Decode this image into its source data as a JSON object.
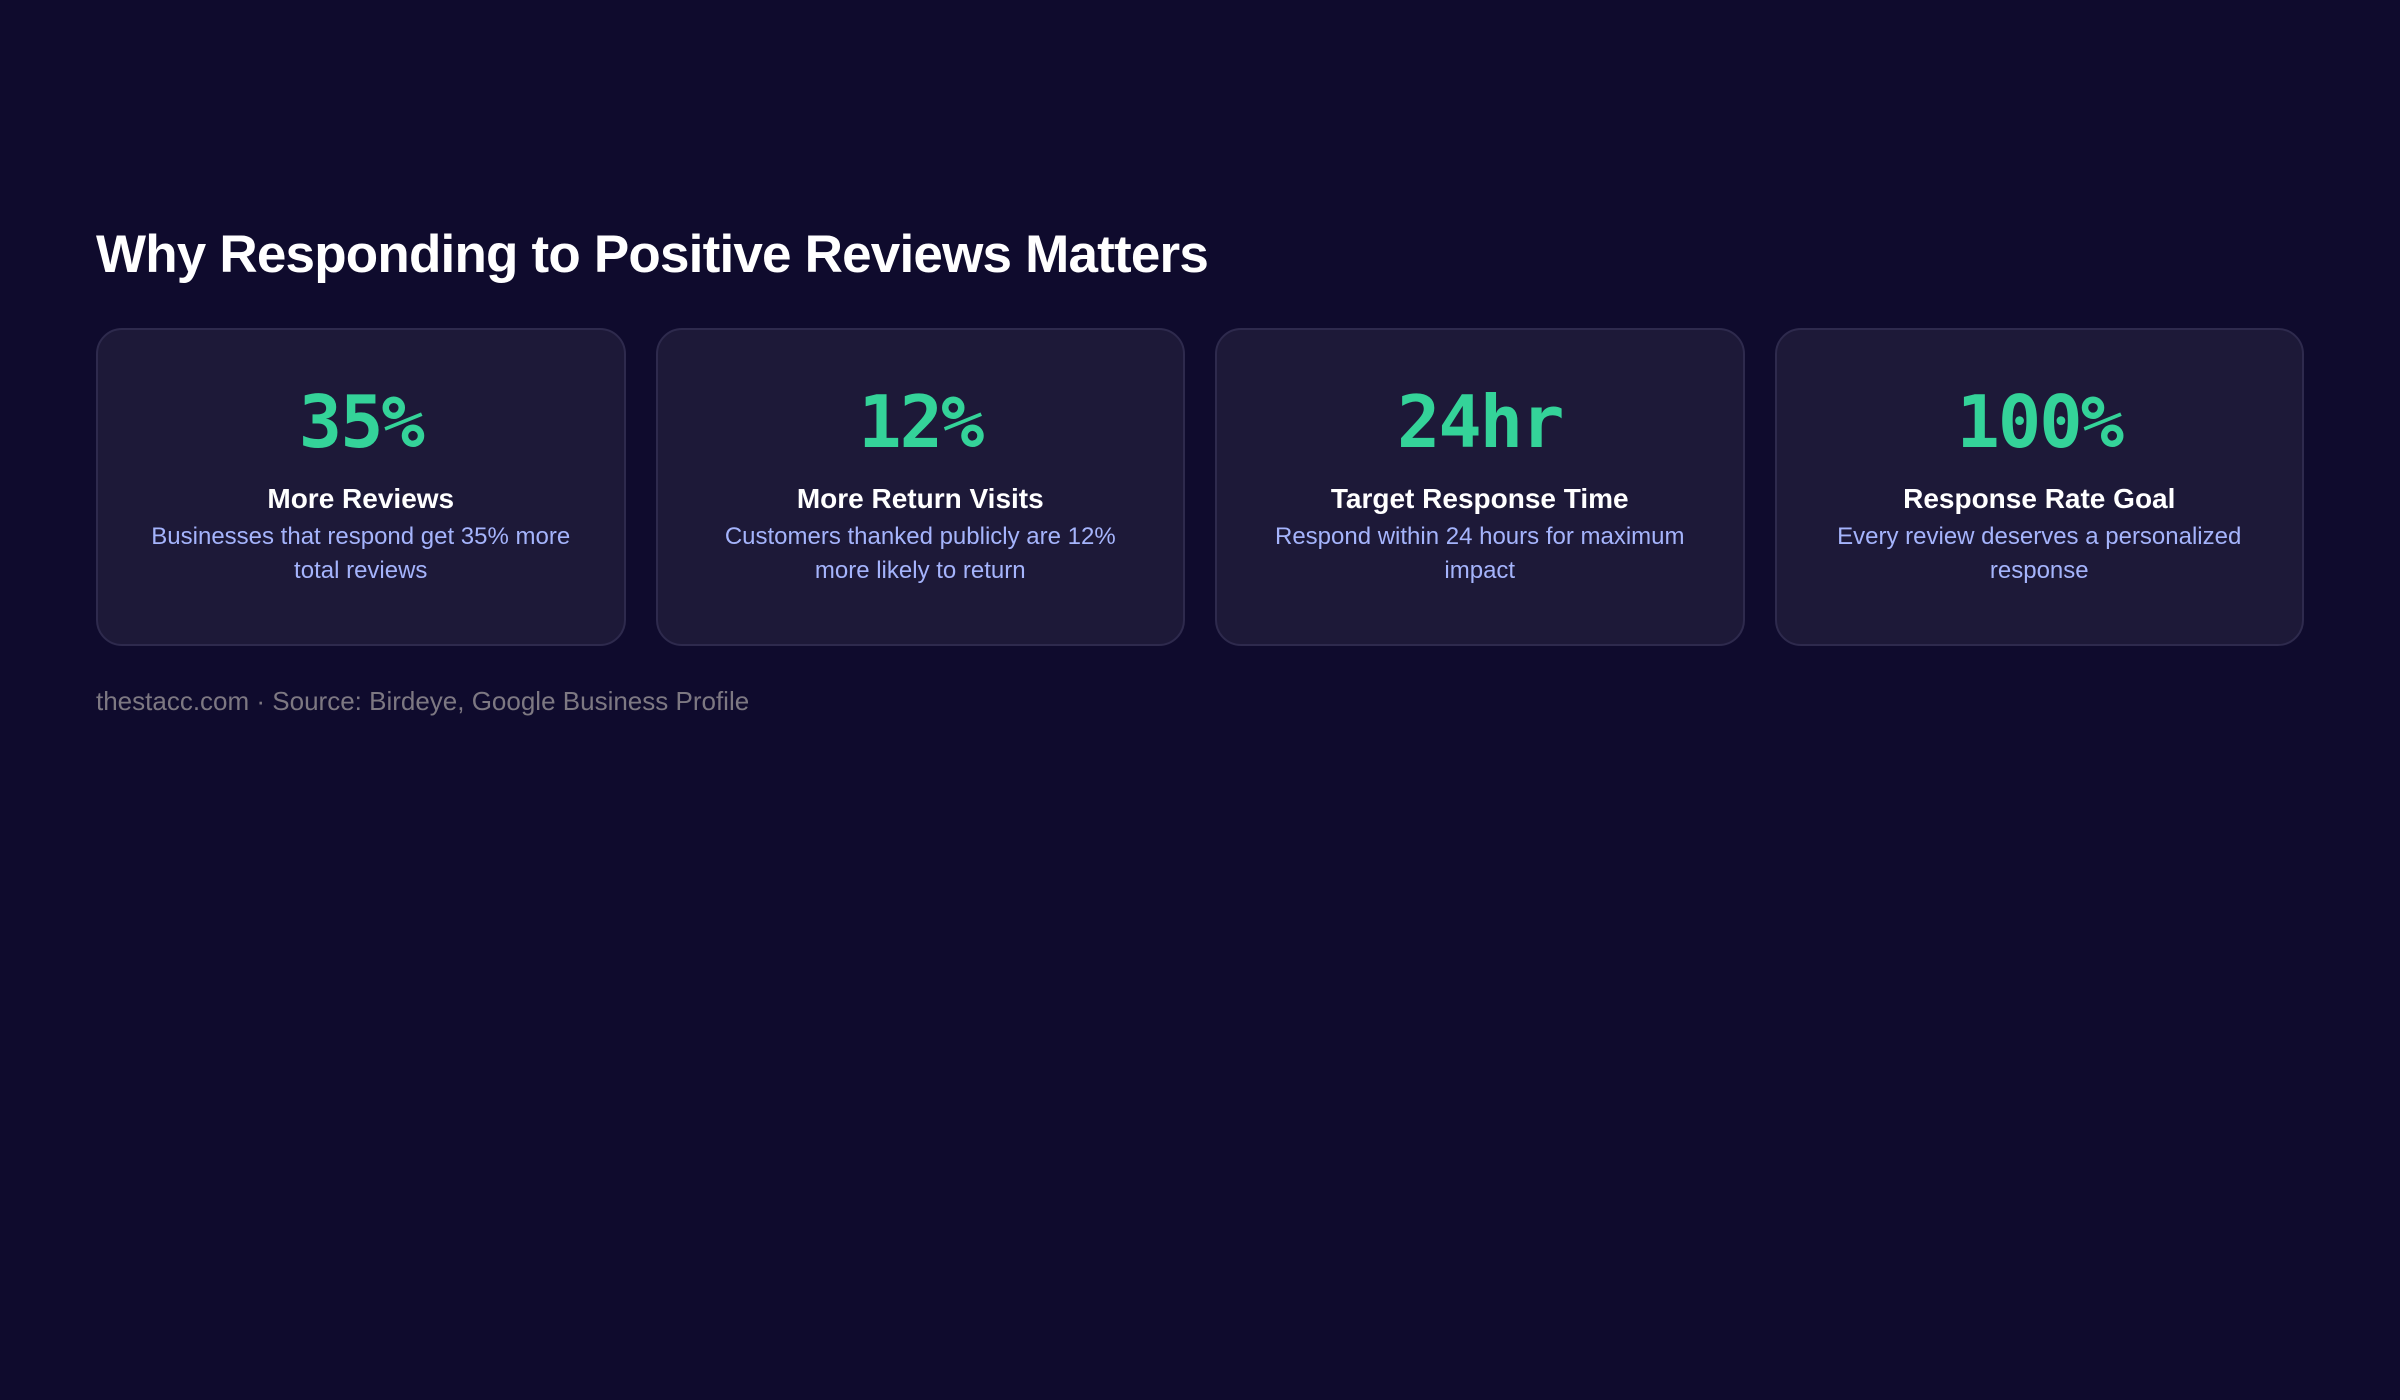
{
  "title": "Why Responding to Positive Reviews Matters",
  "accent_color": "#34d399",
  "cards": [
    {
      "value": "35%",
      "label": "More Reviews",
      "desc": "Businesses that respond get 35% more total reviews"
    },
    {
      "value": "12%",
      "label": "More Return Visits",
      "desc": "Customers thanked publicly are 12% more likely to return"
    },
    {
      "value": "24hr",
      "label": "Target Response Time",
      "desc": "Respond within 24 hours for maximum impact"
    },
    {
      "value": "100%",
      "label": "Response Rate Goal",
      "desc": "Every review deserves a personalized response"
    }
  ],
  "footer": "thestacc.com · Source: Birdeye, Google Business Profile"
}
